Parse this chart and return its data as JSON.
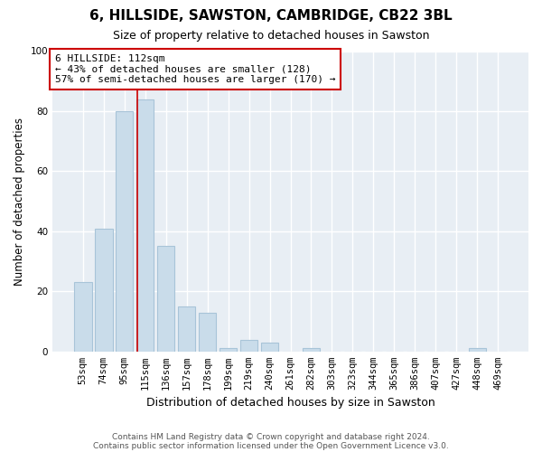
{
  "title": "6, HILLSIDE, SAWSTON, CAMBRIDGE, CB22 3BL",
  "subtitle": "Size of property relative to detached houses in Sawston",
  "xlabel": "Distribution of detached houses by size in Sawston",
  "ylabel": "Number of detached properties",
  "bar_labels": [
    "53sqm",
    "74sqm",
    "95sqm",
    "115sqm",
    "136sqm",
    "157sqm",
    "178sqm",
    "199sqm",
    "219sqm",
    "240sqm",
    "261sqm",
    "282sqm",
    "303sqm",
    "323sqm",
    "344sqm",
    "365sqm",
    "386sqm",
    "407sqm",
    "427sqm",
    "448sqm",
    "469sqm"
  ],
  "bar_heights": [
    23,
    41,
    80,
    84,
    35,
    15,
    13,
    1,
    4,
    3,
    0,
    1,
    0,
    0,
    0,
    0,
    0,
    0,
    0,
    1,
    0
  ],
  "bar_color": "#c9dcea",
  "bar_edge_color": "#a8c4d8",
  "vline_color": "#cc0000",
  "annotation_text": "6 HILLSIDE: 112sqm\n← 43% of detached houses are smaller (128)\n57% of semi-detached houses are larger (170) →",
  "annotation_box_color": "#ffffff",
  "annotation_box_edge": "#cc0000",
  "ylim": [
    0,
    100
  ],
  "yticks": [
    0,
    20,
    40,
    60,
    80,
    100
  ],
  "fig_bg_color": "#ffffff",
  "plot_bg_color": "#e8eef4",
  "grid_color": "#ffffff",
  "footer1": "Contains HM Land Registry data © Crown copyright and database right 2024.",
  "footer2": "Contains public sector information licensed under the Open Government Licence v3.0."
}
